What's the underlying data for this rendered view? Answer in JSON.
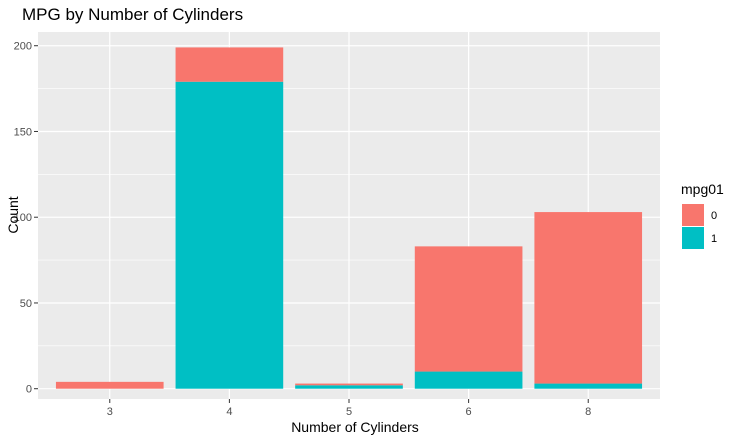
{
  "chart_data": {
    "type": "bar",
    "stacked": true,
    "title": "MPG by Number of Cylinders",
    "xlabel": "Number of Cylinders",
    "ylabel": "Count",
    "categories": [
      "3",
      "4",
      "5",
      "6",
      "8"
    ],
    "series": [
      {
        "name": "0",
        "color": "#F8766D",
        "values": [
          4,
          20,
          1,
          73,
          100
        ]
      },
      {
        "name": "1",
        "color": "#00BFC4",
        "values": [
          0,
          179,
          2,
          10,
          3
        ]
      }
    ],
    "ylim": [
      -6,
      208
    ],
    "yticks": [
      0,
      50,
      100,
      150,
      200
    ],
    "grid": true,
    "legend": {
      "title": "mpg01",
      "position": "right"
    },
    "panel_background": "#EBEBEB"
  }
}
